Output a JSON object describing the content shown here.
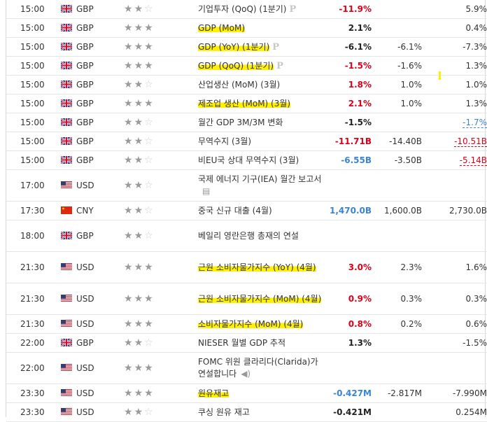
{
  "rows": [
    {
      "time": "15:00",
      "currency": "GBP",
      "flag": "gb",
      "stars": 2,
      "event": "기업투자 (QoQ) (1분기)",
      "highlight": false,
      "badge": "P",
      "icon": "",
      "actual": "-11.9%",
      "actual_color": "red",
      "forecast": "",
      "previous": "5.9%",
      "prev_style": ""
    },
    {
      "time": "15:00",
      "currency": "GBP",
      "flag": "gb",
      "stars": 3,
      "event": "GDP (MoM)",
      "highlight": true,
      "badge": "",
      "icon": "",
      "actual": "2.1%",
      "actual_color": "black",
      "forecast": "",
      "previous": "0.4%",
      "prev_style": ""
    },
    {
      "time": "15:00",
      "currency": "GBP",
      "flag": "gb",
      "stars": 3,
      "event": "GDP (YoY) (1분기)",
      "highlight": true,
      "badge": "P",
      "icon": "",
      "actual": "-6.1%",
      "actual_color": "black",
      "forecast": "-6.1%",
      "previous": "-7.3%",
      "prev_style": ""
    },
    {
      "time": "15:00",
      "currency": "GBP",
      "flag": "gb",
      "stars": 3,
      "event": "GDP (QoQ) (1분기)",
      "highlight": true,
      "badge": "P",
      "icon": "",
      "actual": "-1.5%",
      "actual_color": "red",
      "forecast": "-1.6%",
      "previous": "1.3%",
      "prev_style": ""
    },
    {
      "time": "15:00",
      "currency": "GBP",
      "flag": "gb",
      "stars": 2,
      "event": "산업생산 (MoM) (3월)",
      "highlight": false,
      "badge": "",
      "icon": "",
      "actual": "1.8%",
      "actual_color": "red",
      "forecast": "1.0%",
      "previous": "1.0%",
      "prev_style": ""
    },
    {
      "time": "15:00",
      "currency": "GBP",
      "flag": "gb",
      "stars": 3,
      "event": "제조업 생산 (MoM) (3월)",
      "highlight": true,
      "badge": "",
      "icon": "",
      "actual": "2.1%",
      "actual_color": "red",
      "forecast": "1.0%",
      "previous": "1.3%",
      "prev_style": ""
    },
    {
      "time": "15:00",
      "currency": "GBP",
      "flag": "gb",
      "stars": 2,
      "event": "월간 GDP 3M/3M 변화",
      "highlight": false,
      "badge": "",
      "icon": "",
      "actual": "-1.5%",
      "actual_color": "black",
      "forecast": "",
      "previous": "-1.7%",
      "prev_style": "blue"
    },
    {
      "time": "15:00",
      "currency": "GBP",
      "flag": "gb",
      "stars": 2,
      "event": "무역수지 (3월)",
      "highlight": false,
      "badge": "",
      "icon": "",
      "actual": "-11.71B",
      "actual_color": "red",
      "forecast": "-14.40B",
      "previous": "-10.51B",
      "prev_style": "red"
    },
    {
      "time": "15:00",
      "currency": "GBP",
      "flag": "gb",
      "stars": 2,
      "event": "비EU국 상대 무역수지 (3월)",
      "highlight": false,
      "badge": "",
      "icon": "",
      "actual": "-6.55B",
      "actual_color": "blue",
      "forecast": "-3.50B",
      "previous": "-5.14B",
      "prev_style": "red"
    },
    {
      "time": "17:00",
      "currency": "USD",
      "flag": "us",
      "stars": 2,
      "event": "국제 에너지 기구(IEA) 월간 보고서",
      "highlight": false,
      "badge": "",
      "icon": "doc",
      "actual": "",
      "actual_color": "black",
      "forecast": "",
      "previous": "",
      "prev_style": ""
    },
    {
      "time": "17:30",
      "currency": "CNY",
      "flag": "cn",
      "stars": 2,
      "event": "중국 신규 대출 (4월)",
      "highlight": false,
      "badge": "",
      "icon": "",
      "actual": "1,470.0B",
      "actual_color": "blue",
      "forecast": "1,600.0B",
      "previous": "2,730.0B",
      "prev_style": ""
    },
    {
      "time": "18:00",
      "currency": "GBP",
      "flag": "gb",
      "stars": 2,
      "event": "베일리 영란은행 총재의 연설",
      "highlight": false,
      "badge": "",
      "icon": "",
      "actual": "",
      "actual_color": "black",
      "forecast": "",
      "previous": "",
      "prev_style": ""
    },
    {
      "time": "21:30",
      "currency": "USD",
      "flag": "us",
      "stars": 3,
      "event": "근원 소비자물가지수 (YoY) (4월)",
      "highlight": true,
      "badge": "",
      "icon": "",
      "actual": "3.0%",
      "actual_color": "red",
      "forecast": "2.3%",
      "previous": "1.6%",
      "prev_style": ""
    },
    {
      "time": "21:30",
      "currency": "USD",
      "flag": "us",
      "stars": 3,
      "event": "근원 소비자물가지수 (MoM) (4월)",
      "highlight": true,
      "badge": "",
      "icon": "",
      "actual": "0.9%",
      "actual_color": "red",
      "forecast": "0.3%",
      "previous": "0.3%",
      "prev_style": ""
    },
    {
      "time": "21:30",
      "currency": "USD",
      "flag": "us",
      "stars": 3,
      "event": "소비자물가지수 (MoM) (4월)",
      "highlight": true,
      "badge": "",
      "icon": "",
      "actual": "0.8%",
      "actual_color": "red",
      "forecast": "0.2%",
      "previous": "0.6%",
      "prev_style": ""
    },
    {
      "time": "22:00",
      "currency": "GBP",
      "flag": "gb",
      "stars": 2,
      "event": "NIESER 월별 GDP 추적",
      "highlight": false,
      "badge": "",
      "icon": "",
      "actual": "1.3%",
      "actual_color": "black",
      "forecast": "",
      "previous": "-1.5%",
      "prev_style": ""
    },
    {
      "time": "22:00",
      "currency": "USD",
      "flag": "us",
      "stars": 3,
      "event": "FOMC 위원 클라리다(Clarida)가 연설합니다",
      "highlight": false,
      "badge": "",
      "icon": "speaker",
      "actual": "",
      "actual_color": "black",
      "forecast": "",
      "previous": "",
      "prev_style": ""
    },
    {
      "time": "23:30",
      "currency": "USD",
      "flag": "us",
      "stars": 3,
      "event": "원유재고",
      "highlight": true,
      "badge": "",
      "icon": "",
      "actual": "-0.427M",
      "actual_color": "blue",
      "forecast": "-2.817M",
      "previous": "-7.990M",
      "prev_style": ""
    },
    {
      "time": "23:30",
      "currency": "USD",
      "flag": "us",
      "stars": 2,
      "event": "쿠싱 원유 재고",
      "highlight": false,
      "badge": "",
      "icon": "",
      "actual": "-0.421M",
      "actual_color": "black",
      "forecast": "",
      "previous": "0.254M",
      "prev_style": ""
    }
  ]
}
